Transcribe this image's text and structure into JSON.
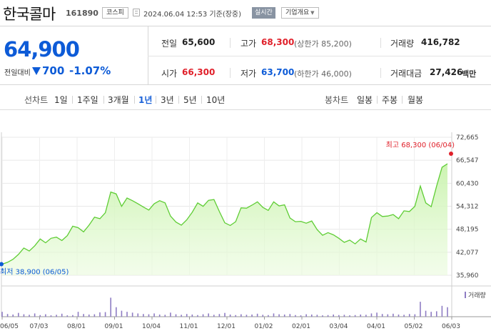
{
  "header": {
    "stock_name": "한국콜마",
    "stock_code": "161890",
    "market": "코스피",
    "datetime": "2024.06.04 12:53 기준(장중)",
    "realtime_label": "실시간",
    "overview_label": "기업개요"
  },
  "price": {
    "current": "64,900",
    "change_label": "전일대비",
    "change_direction": "down",
    "change_value": "700",
    "change_pct": "-1.07%"
  },
  "stats": {
    "prev_label": "전일",
    "prev_value": "65,600",
    "high_label": "고가",
    "high_value": "68,300",
    "upper_limit": "(상한가 85,200)",
    "volume_label": "거래량",
    "volume_value": "416,782",
    "open_label": "시가",
    "open_value": "66,300",
    "low_label": "저가",
    "low_value": "63,700",
    "lower_limit": "(하한가 46,000)",
    "amount_label": "거래대금",
    "amount_value": "27,426",
    "amount_unit": "백만"
  },
  "tabs": {
    "line_label": "선차트",
    "periods": [
      "1일",
      "1주일",
      "3개월",
      "1년",
      "3년",
      "5년",
      "10년"
    ],
    "active_period": "1년",
    "candle_label": "봉차트",
    "candles": [
      "일봉",
      "주봉",
      "월봉"
    ]
  },
  "colors": {
    "up": "#e0202a",
    "down": "#0d5bd7",
    "line": "#5fcd35",
    "fill": "#eafbdd",
    "volume": "#8e7cc3"
  },
  "chart_data": {
    "type": "area",
    "y_ticks": [
      "72,665",
      "66,547",
      "60,430",
      "54,312",
      "48,195",
      "42,077",
      "35,960"
    ],
    "ylim": [
      35960,
      72665
    ],
    "x_ticks": [
      "06/05",
      "07/03",
      "08/01",
      "09/01",
      "10/04",
      "11/01",
      "12/01",
      "01/02",
      "02/01",
      "03/04",
      "04/01",
      "05/02",
      "06/03"
    ],
    "high_label": "최고 68,300 (06/04)",
    "low_label": "최저 38,900 (06/05)",
    "volume_label": "거래량",
    "series": [
      {
        "values": [
          38900,
          39400,
          40200,
          41500,
          43200,
          42400,
          43800,
          45600,
          44600,
          45800,
          46100,
          45200,
          46500,
          49000,
          48600,
          47500,
          49300,
          51400,
          51000,
          52600,
          58100,
          57600,
          54300,
          56500,
          55800,
          55000,
          54100,
          53300,
          55000,
          55800,
          55200,
          51700,
          50100,
          49300,
          50700,
          52700,
          55200,
          54300,
          55900,
          56100,
          52900,
          49900,
          49200,
          50200,
          53900,
          53800,
          54600,
          55500,
          54000,
          53200,
          55500,
          54400,
          54700,
          51200,
          50200,
          50300,
          49800,
          50400,
          48100,
          46600,
          47300,
          46700,
          45800,
          44700,
          45300,
          44300,
          45600,
          44800,
          51300,
          52600,
          51600,
          51700,
          52100,
          51000,
          53100,
          52900,
          54300,
          59700,
          55200,
          54200,
          59700,
          64700,
          65600
        ]
      }
    ],
    "volume": [
      0.18,
      0.1,
      0.08,
      0.14,
      0.09,
      0.07,
      0.12,
      0.06,
      0.09,
      0.05,
      0.07,
      0.11,
      0.05,
      0.06,
      0.18,
      0.1,
      0.08,
      0.09,
      0.16,
      0.17,
      0.7,
      0.35,
      0.22,
      0.18,
      0.15,
      0.12,
      0.1,
      0.09,
      0.12,
      0.08,
      0.07,
      0.15,
      0.09,
      0.07,
      0.1,
      0.08,
      0.06,
      0.09,
      0.12,
      0.07,
      0.1,
      0.14,
      0.08,
      0.06,
      0.09,
      0.07,
      0.08,
      0.11,
      0.07,
      0.06,
      0.12,
      0.09,
      0.08,
      0.1,
      0.06,
      0.05,
      0.09,
      0.08,
      0.07,
      0.05,
      0.06,
      0.08,
      0.06,
      0.07,
      0.05,
      0.06,
      0.08,
      0.07,
      0.12,
      0.15,
      0.1,
      0.09,
      0.11,
      0.08,
      0.07,
      0.1,
      0.09,
      0.55,
      0.22,
      0.18,
      0.2,
      0.4,
      0.35
    ]
  }
}
